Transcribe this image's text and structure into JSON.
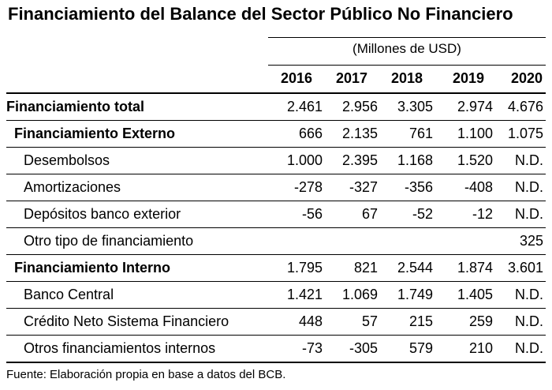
{
  "title": "Financiamiento del Balance del Sector Público No Financiero",
  "units": "(Millones de USD)",
  "years": [
    "2016",
    "2017",
    "2018",
    "2019",
    "2020"
  ],
  "rows": [
    {
      "label": "Financiamiento total",
      "type": "total",
      "values": [
        "2.461",
        "2.956",
        "3.305",
        "2.974",
        "4.676"
      ]
    },
    {
      "label": "Financiamiento Externo",
      "type": "section",
      "values": [
        "666",
        "2.135",
        "761",
        "1.100",
        "1.075"
      ]
    },
    {
      "label": "Desembolsos",
      "type": "item",
      "values": [
        "1.000",
        "2.395",
        "1.168",
        "1.520",
        "N.D."
      ]
    },
    {
      "label": "Amortizaciones",
      "type": "item",
      "values": [
        "-278",
        "-327",
        "-356",
        "-408",
        "N.D."
      ]
    },
    {
      "label": "Depósitos banco exterior",
      "type": "item",
      "values": [
        "-56",
        "67",
        "-52",
        "-12",
        "N.D."
      ]
    },
    {
      "label": "Otro tipo de financiamiento",
      "type": "item",
      "values": [
        "",
        "",
        "",
        "",
        "325"
      ]
    },
    {
      "label": "Financiamiento Interno",
      "type": "section",
      "values": [
        "1.795",
        "821",
        "2.544",
        "1.874",
        "3.601"
      ]
    },
    {
      "label": "Banco Central",
      "type": "item",
      "values": [
        "1.421",
        "1.069",
        "1.749",
        "1.405",
        "N.D."
      ]
    },
    {
      "label": "Crédito Neto Sistema Financiero",
      "type": "item",
      "values": [
        "448",
        "57",
        "215",
        "259",
        "N.D."
      ]
    },
    {
      "label": "Otros financiamientos internos",
      "type": "item",
      "values": [
        "-73",
        "-305",
        "579",
        "210",
        "N.D."
      ]
    }
  ],
  "source": "Fuente: Elaboración propia en base a datos del BCB."
}
